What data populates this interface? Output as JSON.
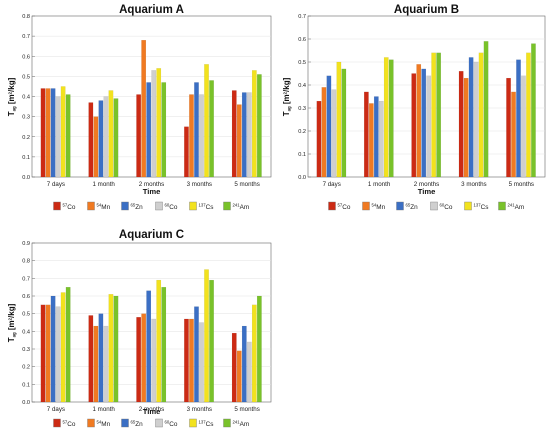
{
  "chart_data": [
    {
      "type": "bar",
      "title": "Aquarium A",
      "xlabel": "Time",
      "ylabel": "T_ag [m²/kg]",
      "ylim": [
        0,
        0.8
      ],
      "yticks": [
        "0.0",
        "0.1",
        "0.2",
        "0.3",
        "0.4",
        "0.5",
        "0.6",
        "0.7",
        "0.8"
      ],
      "categories": [
        "7 days",
        "1 month",
        "2 months",
        "3 months",
        "5 months"
      ],
      "series": [
        {
          "name": "57Co",
          "values": [
            0.44,
            0.37,
            0.41,
            0.25,
            0.43
          ]
        },
        {
          "name": "54Mn",
          "values": [
            0.44,
            0.3,
            0.68,
            0.41,
            0.36
          ]
        },
        {
          "name": "65Zn",
          "values": [
            0.44,
            0.38,
            0.47,
            0.47,
            0.42
          ]
        },
        {
          "name": "60Co",
          "values": [
            0.4,
            0.4,
            0.53,
            0.41,
            0.42
          ]
        },
        {
          "name": "137Cs",
          "values": [
            0.45,
            0.43,
            0.54,
            0.56,
            0.53
          ]
        },
        {
          "name": "241Am",
          "values": [
            0.41,
            0.39,
            0.47,
            0.48,
            0.51
          ]
        }
      ],
      "grid": true,
      "legend": "bottom"
    },
    {
      "type": "bar",
      "title": "Aquarium B",
      "xlabel": "Time",
      "ylabel": "T_ag [m²/kg]",
      "ylim": [
        0,
        0.7
      ],
      "yticks": [
        "0.0",
        "0.1",
        "0.2",
        "0.3",
        "0.4",
        "0.5",
        "0.6",
        "0.7"
      ],
      "categories": [
        "7 days",
        "1 month",
        "2 months",
        "3 months",
        "5 months"
      ],
      "series": [
        {
          "name": "57Co",
          "values": [
            0.33,
            0.37,
            0.45,
            0.46,
            0.43
          ]
        },
        {
          "name": "54Mn",
          "values": [
            0.39,
            0.32,
            0.49,
            0.43,
            0.37
          ]
        },
        {
          "name": "65Zn",
          "values": [
            0.44,
            0.35,
            0.47,
            0.52,
            0.51
          ]
        },
        {
          "name": "60Co",
          "values": [
            0.38,
            0.33,
            0.44,
            0.5,
            0.44
          ]
        },
        {
          "name": "137Cs",
          "values": [
            0.5,
            0.52,
            0.54,
            0.54,
            0.54
          ]
        },
        {
          "name": "241Am",
          "values": [
            0.47,
            0.51,
            0.54,
            0.59,
            0.58
          ]
        }
      ],
      "grid": true,
      "legend": "bottom"
    },
    {
      "type": "bar",
      "title": "Aquarium C",
      "xlabel": "Time",
      "ylabel": "T_ag [m²/kg]",
      "ylim": [
        0,
        0.9
      ],
      "yticks": [
        "0.0",
        "0.1",
        "0.2",
        "0.3",
        "0.4",
        "0.5",
        "0.6",
        "0.7",
        "0.8",
        "0.9"
      ],
      "categories": [
        "7 days",
        "1 month",
        "2 months",
        "3 months",
        "5 months"
      ],
      "series": [
        {
          "name": "57Co",
          "values": [
            0.55,
            0.49,
            0.48,
            0.47,
            0.39
          ]
        },
        {
          "name": "54Mn",
          "values": [
            0.55,
            0.43,
            0.5,
            0.47,
            0.29
          ]
        },
        {
          "name": "65Zn",
          "values": [
            0.6,
            0.5,
            0.63,
            0.54,
            0.43
          ]
        },
        {
          "name": "60Co",
          "values": [
            0.54,
            0.43,
            0.47,
            0.45,
            0.34
          ]
        },
        {
          "name": "137Cs",
          "values": [
            0.62,
            0.61,
            0.69,
            0.75,
            0.55
          ]
        },
        {
          "name": "241Am",
          "values": [
            0.65,
            0.6,
            0.65,
            0.69,
            0.6
          ]
        }
      ],
      "grid": true,
      "legend": "bottom"
    }
  ],
  "legend_items": [
    {
      "mass": "57",
      "element": "Co",
      "color": "#cc2a14"
    },
    {
      "mass": "54",
      "element": "Mn",
      "color": "#f07a22"
    },
    {
      "mass": "65",
      "element": "Zn",
      "color": "#3b6fc4"
    },
    {
      "mass": "60",
      "element": "Co",
      "color": "#cfcfcf"
    },
    {
      "mass": "137",
      "element": "Cs",
      "color": "#f2e21e"
    },
    {
      "mass": "241",
      "element": "Am",
      "color": "#79c22a"
    }
  ],
  "axis_text": {
    "ylabel_main": "T",
    "ylabel_sub": "ag",
    "ylabel_unit_open": " [m",
    "ylabel_unit_sup": "2",
    "ylabel_unit_close": "/kg]"
  }
}
